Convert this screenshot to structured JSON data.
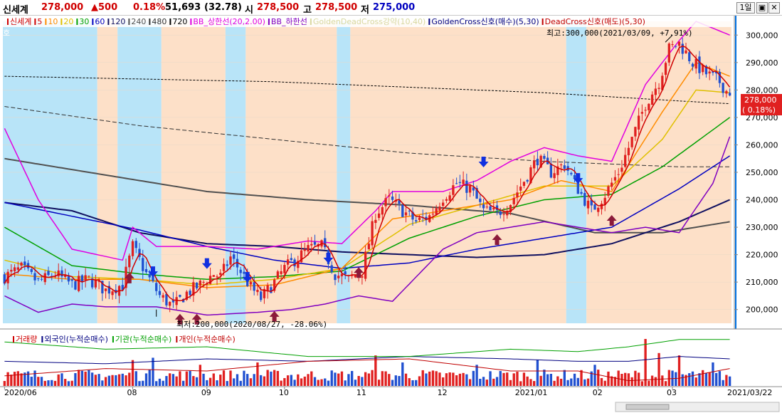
{
  "header": {
    "stock_name": "신세계",
    "price": "278,000",
    "change": "▲500",
    "change_pct": "0.18%",
    "volume": "51,693",
    "volume_pct": "(32.78)",
    "open_label": "시",
    "open": "278,500",
    "high_label": "고",
    "high": "278,500",
    "low_label": "저",
    "low": "275,000",
    "period": "1일",
    "btn_restore": "▣",
    "btn_close": "✕"
  },
  "main_legend": {
    "items": [
      {
        "text": "신세계",
        "color": "#d00000"
      },
      {
        "text": "5",
        "color": "#d00000"
      },
      {
        "text": "10",
        "color": "#ff8c00"
      },
      {
        "text": "20",
        "color": "#e0c000"
      },
      {
        "text": "30",
        "color": "#00a000"
      },
      {
        "text": "60",
        "color": "#0000c0"
      },
      {
        "text": "120",
        "color": "#101060"
      },
      {
        "text": "240",
        "color": "#505050"
      },
      {
        "text": "480",
        "color": "#303030"
      },
      {
        "text": "720",
        "color": "#000000"
      },
      {
        "text": "BB_상한선(20,2.00)",
        "color": "#e000e0"
      },
      {
        "text": "BB_하한선",
        "color": "#8000c0"
      },
      {
        "text": "GoldenDeadCross강약(10,40)",
        "color": "#d8d8a0"
      },
      {
        "text": "GoldenCross신호(매수)(5,30)",
        "color": "#000080"
      },
      {
        "text": "DeadCross신호(매도)(5,30)",
        "color": "#c00000"
      }
    ],
    "side_label": "호"
  },
  "annotations": {
    "high_note": "최고:300,000(2021/03/09, +7.91%)",
    "low_note": "최저:200,000(2020/08/27, -28.06%)"
  },
  "price_tag": {
    "price": "278,000",
    "pct": "( 0.18%)"
  },
  "sub_legend": {
    "items": [
      {
        "text": "거래량",
        "color": "#d00000"
      },
      {
        "text": "외국인(누적순매수)",
        "color": "#000080"
      },
      {
        "text": "기관(누적순매수)",
        "color": "#00a000"
      },
      {
        "text": "개인(누적순매수)",
        "color": "#c00000"
      }
    ]
  },
  "colors": {
    "up": "#e02020",
    "down": "#2050d0",
    "band_golden": "#fde0c8",
    "band_dead": "#b8e4f8"
  },
  "chart_data": {
    "type": "line",
    "ylim": [
      195000,
      305000
    ],
    "y_ticks": [
      "300,000",
      "290,000",
      "280,000",
      "270,000",
      "260,000",
      "250,000",
      "240,000",
      "230,000",
      "220,000",
      "210,000",
      "200,000"
    ],
    "y_tick_values": [
      300000,
      290000,
      280000,
      270000,
      260000,
      250000,
      240000,
      230000,
      220000,
      210000,
      200000
    ],
    "x_ticks": [
      "2020/06",
      "08",
      "09",
      "10",
      "11",
      "12",
      "2021/01",
      "02",
      "03",
      "2021/03/22"
    ],
    "x_tick_index": [
      0,
      38,
      60,
      83,
      106,
      130,
      153,
      176,
      198,
      215
    ],
    "n_days": 216,
    "close_anchors": [
      [
        0,
        212000
      ],
      [
        5,
        215000
      ],
      [
        10,
        210000
      ],
      [
        15,
        213000
      ],
      [
        20,
        209000
      ],
      [
        25,
        211000
      ],
      [
        30,
        207000
      ],
      [
        35,
        209000
      ],
      [
        38,
        223000
      ],
      [
        42,
        213000
      ],
      [
        46,
        205000
      ],
      [
        50,
        201000
      ],
      [
        54,
        206000
      ],
      [
        58,
        209000
      ],
      [
        62,
        213000
      ],
      [
        64,
        212000
      ],
      [
        67,
        219000
      ],
      [
        70,
        214000
      ],
      [
        73,
        208000
      ],
      [
        76,
        204000
      ],
      [
        80,
        210000
      ],
      [
        83,
        215000
      ],
      [
        86,
        218000
      ],
      [
        90,
        222000
      ],
      [
        94,
        223000
      ],
      [
        98,
        213000
      ],
      [
        102,
        211000
      ],
      [
        106,
        214000
      ],
      [
        110,
        235000
      ],
      [
        114,
        240000
      ],
      [
        118,
        236000
      ],
      [
        122,
        232000
      ],
      [
        126,
        234000
      ],
      [
        130,
        241000
      ],
      [
        134,
        246000
      ],
      [
        138,
        244000
      ],
      [
        142,
        236000
      ],
      [
        146,
        235000
      ],
      [
        150,
        239000
      ],
      [
        154,
        247000
      ],
      [
        158,
        255000
      ],
      [
        162,
        250000
      ],
      [
        166,
        253000
      ],
      [
        170,
        244000
      ],
      [
        174,
        236000
      ],
      [
        178,
        242000
      ],
      [
        182,
        250000
      ],
      [
        186,
        262000
      ],
      [
        190,
        275000
      ],
      [
        194,
        283000
      ],
      [
        197,
        295000
      ],
      [
        200,
        297000
      ],
      [
        204,
        290000
      ],
      [
        208,
        286000
      ],
      [
        212,
        283000
      ],
      [
        215,
        278000
      ]
    ],
    "ma_anchors": {
      "ma10": [
        [
          0,
          213000
        ],
        [
          20,
          211000
        ],
        [
          40,
          211000
        ],
        [
          60,
          208000
        ],
        [
          80,
          209000
        ],
        [
          100,
          215000
        ],
        [
          115,
          233000
        ],
        [
          130,
          236000
        ],
        [
          150,
          240000
        ],
        [
          165,
          247000
        ],
        [
          180,
          243000
        ],
        [
          195,
          272000
        ],
        [
          205,
          290000
        ],
        [
          215,
          285000
        ]
      ],
      "ma20": [
        [
          0,
          218000
        ],
        [
          20,
          212000
        ],
        [
          40,
          211000
        ],
        [
          60,
          209000
        ],
        [
          80,
          211000
        ],
        [
          100,
          215000
        ],
        [
          120,
          231000
        ],
        [
          140,
          238000
        ],
        [
          160,
          245000
        ],
        [
          180,
          245000
        ],
        [
          195,
          262000
        ],
        [
          205,
          280000
        ],
        [
          215,
          279000
        ]
      ],
      "ma30": [
        [
          0,
          230000
        ],
        [
          20,
          216000
        ],
        [
          40,
          213000
        ],
        [
          60,
          211000
        ],
        [
          80,
          212000
        ],
        [
          100,
          214000
        ],
        [
          120,
          226000
        ],
        [
          140,
          234000
        ],
        [
          160,
          240000
        ],
        [
          180,
          242000
        ],
        [
          195,
          252000
        ],
        [
          215,
          270000
        ]
      ],
      "ma60": [
        [
          0,
          239000
        ],
        [
          20,
          234000
        ],
        [
          40,
          229000
        ],
        [
          60,
          223000
        ],
        [
          80,
          218000
        ],
        [
          100,
          215000
        ],
        [
          120,
          217000
        ],
        [
          140,
          222000
        ],
        [
          160,
          226000
        ],
        [
          180,
          230000
        ],
        [
          200,
          244000
        ],
        [
          215,
          256000
        ]
      ],
      "ma120": [
        [
          0,
          239000
        ],
        [
          20,
          236000
        ],
        [
          40,
          228000
        ],
        [
          60,
          224000
        ],
        [
          80,
          223000
        ],
        [
          100,
          221000
        ],
        [
          120,
          220000
        ],
        [
          140,
          219000
        ],
        [
          160,
          220000
        ],
        [
          180,
          224000
        ],
        [
          200,
          232000
        ],
        [
          215,
          240000
        ]
      ],
      "ma240": [
        [
          0,
          255000
        ],
        [
          30,
          249000
        ],
        [
          60,
          243000
        ],
        [
          90,
          240000
        ],
        [
          120,
          238000
        ],
        [
          150,
          235000
        ],
        [
          175,
          228000
        ],
        [
          195,
          228000
        ],
        [
          215,
          232000
        ]
      ],
      "ma480": [
        [
          0,
          274000
        ],
        [
          40,
          267000
        ],
        [
          80,
          262000
        ],
        [
          120,
          257000
        ],
        [
          160,
          254000
        ],
        [
          200,
          252000
        ],
        [
          215,
          252000
        ]
      ],
      "ma720": [
        [
          0,
          285000
        ],
        [
          40,
          284000
        ],
        [
          80,
          283000
        ],
        [
          120,
          281000
        ],
        [
          160,
          279000
        ],
        [
          200,
          276000
        ],
        [
          215,
          275000
        ]
      ]
    },
    "bb_upper": [
      [
        0,
        266000
      ],
      [
        10,
        240000
      ],
      [
        20,
        222000
      ],
      [
        35,
        218000
      ],
      [
        38,
        230000
      ],
      [
        45,
        223000
      ],
      [
        60,
        223000
      ],
      [
        75,
        222000
      ],
      [
        90,
        225000
      ],
      [
        100,
        224000
      ],
      [
        110,
        236000
      ],
      [
        115,
        243000
      ],
      [
        130,
        243000
      ],
      [
        140,
        247000
      ],
      [
        150,
        254000
      ],
      [
        160,
        259000
      ],
      [
        170,
        256000
      ],
      [
        180,
        254000
      ],
      [
        190,
        282000
      ],
      [
        200,
        298000
      ],
      [
        205,
        305000
      ],
      [
        215,
        300000
      ]
    ],
    "bb_lower": [
      [
        0,
        205000
      ],
      [
        10,
        199000
      ],
      [
        20,
        202000
      ],
      [
        30,
        201000
      ],
      [
        45,
        201000
      ],
      [
        60,
        198000
      ],
      [
        75,
        199000
      ],
      [
        85,
        200000
      ],
      [
        95,
        202000
      ],
      [
        105,
        205000
      ],
      [
        115,
        203000
      ],
      [
        130,
        222000
      ],
      [
        140,
        228000
      ],
      [
        150,
        230000
      ],
      [
        160,
        232000
      ],
      [
        170,
        230000
      ],
      [
        180,
        228000
      ],
      [
        190,
        230000
      ],
      [
        200,
        228000
      ],
      [
        210,
        246000
      ],
      [
        215,
        263000
      ]
    ],
    "bands": [
      {
        "start": 0,
        "end": 28,
        "kind": "dead"
      },
      {
        "start": 28,
        "end": 34,
        "kind": "golden"
      },
      {
        "start": 34,
        "end": 47,
        "kind": "dead"
      },
      {
        "start": 47,
        "end": 66,
        "kind": "golden"
      },
      {
        "start": 66,
        "end": 72,
        "kind": "dead"
      },
      {
        "start": 72,
        "end": 99,
        "kind": "golden"
      },
      {
        "start": 99,
        "end": 103,
        "kind": "dead"
      },
      {
        "start": 103,
        "end": 167,
        "kind": "golden"
      },
      {
        "start": 167,
        "end": 173,
        "kind": "dead"
      },
      {
        "start": 173,
        "end": 216,
        "kind": "golden"
      }
    ],
    "buy_signals": [
      [
        37,
        215000
      ],
      [
        52,
        200000
      ],
      [
        57,
        200000
      ],
      [
        80,
        201000
      ],
      [
        105,
        217000
      ],
      [
        146,
        229000
      ],
      [
        180,
        236000
      ]
    ],
    "sell_signals": [
      [
        44,
        210000
      ],
      [
        60,
        213000
      ],
      [
        72,
        208000
      ],
      [
        96,
        215000
      ],
      [
        142,
        250000
      ],
      [
        170,
        244000
      ]
    ],
    "high_point": [
      198,
      300000
    ],
    "low_point": [
      45,
      200000
    ],
    "last_close": 278000,
    "volume_series": {
      "comment_ratio": "relative volume 0-1",
      "spikes": [
        [
          38,
          0.55
        ],
        [
          44,
          0.6
        ],
        [
          58,
          0.45
        ],
        [
          75,
          0.5
        ],
        [
          110,
          0.65
        ],
        [
          118,
          0.5
        ],
        [
          140,
          0.45
        ],
        [
          158,
          0.55
        ],
        [
          175,
          0.45
        ],
        [
          190,
          1.0
        ],
        [
          194,
          0.7
        ],
        [
          200,
          0.65
        ],
        [
          210,
          0.5
        ]
      ]
    },
    "flow_foreign": [
      [
        0,
        0.55
      ],
      [
        30,
        0.6
      ],
      [
        60,
        0.5
      ],
      [
        90,
        0.55
      ],
      [
        120,
        0.45
      ],
      [
        150,
        0.5
      ],
      [
        170,
        0.55
      ],
      [
        185,
        0.55
      ],
      [
        200,
        0.45
      ],
      [
        215,
        0.5
      ]
    ],
    "flow_inst": [
      [
        0,
        0.15
      ],
      [
        30,
        0.3
      ],
      [
        60,
        0.25
      ],
      [
        90,
        0.45
      ],
      [
        120,
        0.45
      ],
      [
        150,
        0.3
      ],
      [
        170,
        0.35
      ],
      [
        185,
        0.25
      ],
      [
        200,
        0.1
      ],
      [
        215,
        0.1
      ]
    ],
    "flow_indiv": [
      [
        0,
        0.85
      ],
      [
        30,
        0.7
      ],
      [
        60,
        0.75
      ],
      [
        90,
        0.55
      ],
      [
        120,
        0.5
      ],
      [
        150,
        0.75
      ],
      [
        170,
        0.75
      ],
      [
        185,
        0.95
      ],
      [
        200,
        0.9
      ],
      [
        215,
        0.7
      ]
    ]
  }
}
